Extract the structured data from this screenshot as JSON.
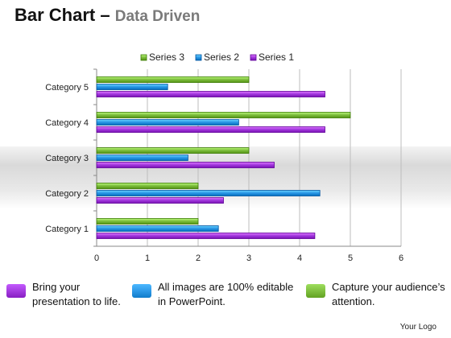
{
  "header": {
    "title_main": "Bar Chart",
    "title_dash": " – ",
    "title_sub": "Data Driven"
  },
  "chart_data": {
    "type": "bar",
    "orientation": "horizontal",
    "categories": [
      "Category 1",
      "Category 2",
      "Category 3",
      "Category 4",
      "Category 5"
    ],
    "series": [
      {
        "name": "Series 1",
        "color": "#a53ce0",
        "values": [
          4.3,
          2.5,
          3.5,
          4.5,
          4.5
        ]
      },
      {
        "name": "Series 2",
        "color": "#2e9ae8",
        "values": [
          2.4,
          4.4,
          1.8,
          2.8,
          1.4
        ]
      },
      {
        "name": "Series 3",
        "color": "#80c040",
        "values": [
          2.0,
          2.0,
          3.0,
          5.0,
          3.0
        ]
      }
    ],
    "legend_order": [
      "Series 3",
      "Series 2",
      "Series 1"
    ],
    "legend_position": "top",
    "xlim": [
      0,
      6
    ],
    "xticks": [
      "0",
      "1",
      "2",
      "3",
      "4",
      "5",
      "6"
    ],
    "grid": true
  },
  "footer": [
    {
      "text": "Bring your\npresentation to life.",
      "color": "#a53ce0"
    },
    {
      "text": "All images are 100% editable\nin PowerPoint.",
      "color": "#2e9ae8"
    },
    {
      "text": "Capture your audience’s\nattention.",
      "color": "#80c040"
    }
  ],
  "logo": "Your Logo"
}
